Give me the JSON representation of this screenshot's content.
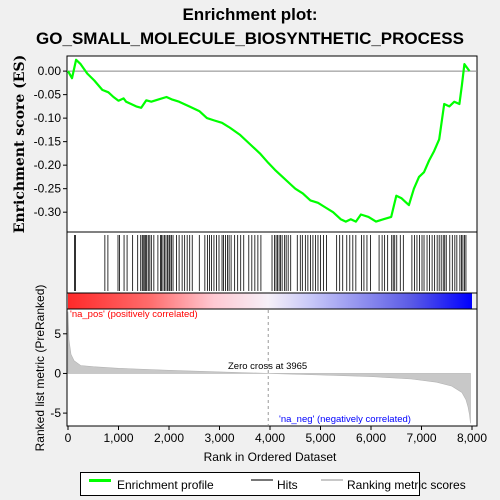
{
  "chart_data": {
    "type": "line",
    "title": "Enrichment plot:",
    "subtitle": "GO_SMALL_MOLECULE_BIOSYNTHETIC_PROCESS",
    "ylabel": "Enrichment score (ES)",
    "xlabel": "Rank in Ordered Dataset",
    "ylabel_bottom": "Ranked list metric (PreRanked)",
    "xlim": [
      0,
      8000
    ],
    "ylim": [
      -0.34,
      0.03
    ],
    "ylim_bottom": [
      -6.5,
      8
    ],
    "x_ticks": [
      0,
      1000,
      2000,
      3000,
      4000,
      5000,
      6000,
      7000,
      8000
    ],
    "x_tick_labels": [
      "0",
      "1,000",
      "2,000",
      "3,000",
      "4,000",
      "5,000",
      "6,000",
      "7,000",
      "8,000"
    ],
    "y_ticks": [
      0.0,
      -0.05,
      -0.1,
      -0.15,
      -0.2,
      -0.25,
      -0.3
    ],
    "y_tick_labels": [
      "0.00",
      "-0.05",
      "-0.10",
      "-0.15",
      "-0.20",
      "-0.25",
      "-0.30"
    ],
    "y_ticks_bottom": [
      5,
      0,
      -5
    ],
    "y_tick_labels_bottom": [
      "5",
      "0",
      "-5"
    ],
    "series": [
      {
        "name": "Enrichment profile",
        "color": "#00ff00",
        "x": [
          0,
          80,
          160,
          250,
          380,
          520,
          680,
          800,
          900,
          1000,
          1100,
          1150,
          1250,
          1350,
          1450,
          1550,
          1650,
          1800,
          1950,
          2050,
          2200,
          2400,
          2600,
          2750,
          2900,
          3050,
          3200,
          3400,
          3600,
          3800,
          3965,
          4100,
          4250,
          4400,
          4500,
          4650,
          4800,
          4950,
          5100,
          5250,
          5400,
          5500,
          5600,
          5700,
          5800,
          5950,
          6100,
          6250,
          6400,
          6500,
          6600,
          6700,
          6750,
          6850,
          6950,
          7050,
          7150,
          7250,
          7350,
          7450,
          7550,
          7650,
          7750,
          7800,
          7850,
          7950
        ],
        "y": [
          0.0,
          -0.015,
          0.024,
          0.015,
          -0.005,
          -0.02,
          -0.04,
          -0.045,
          -0.055,
          -0.063,
          -0.058,
          -0.065,
          -0.07,
          -0.075,
          -0.078,
          -0.062,
          -0.065,
          -0.06,
          -0.055,
          -0.06,
          -0.065,
          -0.075,
          -0.085,
          -0.1,
          -0.105,
          -0.11,
          -0.12,
          -0.135,
          -0.155,
          -0.175,
          -0.195,
          -0.21,
          -0.225,
          -0.24,
          -0.25,
          -0.26,
          -0.275,
          -0.28,
          -0.29,
          -0.3,
          -0.315,
          -0.32,
          -0.315,
          -0.32,
          -0.305,
          -0.31,
          -0.32,
          -0.315,
          -0.31,
          -0.265,
          -0.27,
          -0.28,
          -0.285,
          -0.25,
          -0.225,
          -0.215,
          -0.19,
          -0.17,
          -0.145,
          -0.07,
          -0.075,
          -0.065,
          -0.07,
          -0.03,
          0.015,
          0.0
        ]
      },
      {
        "name": "Hits",
        "color": "#000000",
        "x": [
          130,
          150,
          730,
          790,
          990,
          1020,
          1110,
          1170,
          1280,
          1380,
          1440,
          1470,
          1490,
          1520,
          1540,
          1560,
          1590,
          1620,
          1650,
          1700,
          1780,
          1830,
          1850,
          1880,
          1910,
          1940,
          1970,
          2000,
          2020,
          2050,
          2080,
          2150,
          2200,
          2260,
          2310,
          2360,
          2410,
          2460,
          2600,
          2710,
          2760,
          2800,
          2840,
          2890,
          2940,
          2990,
          3050,
          3080,
          3120,
          3160,
          3190,
          3230,
          3300,
          3360,
          3420,
          3480,
          3580,
          3640,
          3700,
          3760,
          3820,
          4040,
          4090,
          4120,
          4150,
          4180,
          4210,
          4240,
          4290,
          4320,
          4360,
          4410,
          4540,
          4600,
          4640,
          4700,
          4750,
          4800,
          4850,
          4900,
          4950,
          5000,
          5060,
          5120,
          5320,
          5380,
          5440,
          5520,
          5580,
          5640,
          5700,
          5810,
          5860,
          5920,
          5990,
          6160,
          6220,
          6270,
          6330,
          6410,
          6440,
          6470,
          6510,
          6580,
          6640,
          6810,
          6860,
          6910,
          6960,
          7010,
          7050,
          7110,
          7160,
          7210,
          7260,
          7310,
          7350,
          7390,
          7430,
          7460,
          7490,
          7560,
          7610,
          7660,
          7700,
          7760,
          7790,
          7820,
          7850,
          7880
        ]
      },
      {
        "name": "Ranking metric scores",
        "color": "#c8c8c8",
        "x": [
          0,
          20,
          60,
          120,
          250,
          500,
          1000,
          2000,
          3000,
          3965,
          5000,
          6000,
          6800,
          7300,
          7600,
          7800,
          7880,
          7920,
          7950,
          7970
        ],
        "y": [
          7.8,
          4.2,
          2.4,
          1.6,
          1.0,
          0.85,
          0.65,
          0.4,
          0.2,
          0.0,
          -0.2,
          -0.4,
          -0.7,
          -1.1,
          -1.6,
          -2.4,
          -3.3,
          -4.2,
          -5.2,
          -6.3
        ]
      }
    ],
    "annotations": {
      "pos_label": "'na_pos' (positively correlated)",
      "neg_label": "'na_neg' (negatively correlated)",
      "zero_cross": "Zero cross at 3965",
      "zero_cross_x": 3965
    },
    "colors": {
      "pos": "#ff0000",
      "neg": "#0000ff",
      "profile": "#00ff00",
      "metric_fill": "#c8c8c8"
    },
    "legend": {
      "placement": "bottom",
      "items": [
        "Enrichment profile",
        "Hits",
        "Ranking metric scores"
      ]
    },
    "grid": false
  }
}
